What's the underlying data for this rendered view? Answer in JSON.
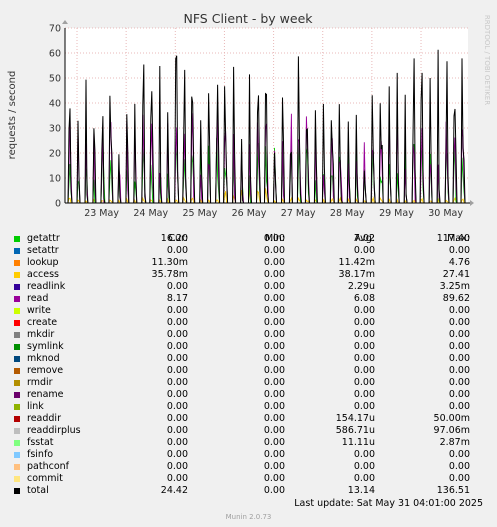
{
  "title": "NFS Client - by week",
  "vertical_label": "requests / second",
  "side_text": "RRDTOOL / TOBI OETIKER",
  "footer_text": "Munin 2.0.73",
  "last_update": "Last update: Sat May 31 04:01:00 2025",
  "legend_headers": {
    "cur": "Cur:",
    "min": "Min:",
    "avg": "Avg:",
    "max": "Max:"
  },
  "legend": [
    {
      "name": "getattr",
      "color": "#00cc00",
      "cur": "16.20",
      "min": "0.00",
      "avg": "7.02",
      "max": "117.40"
    },
    {
      "name": "setattr",
      "color": "#0066b3",
      "cur": "0.00",
      "min": "0.00",
      "avg": "0.00",
      "max": "0.00"
    },
    {
      "name": "lookup",
      "color": "#ff8000",
      "cur": "11.30m",
      "min": "0.00",
      "avg": "11.42m",
      "max": "4.76"
    },
    {
      "name": "access",
      "color": "#ffcc00",
      "cur": "35.78m",
      "min": "0.00",
      "avg": "38.17m",
      "max": "27.41"
    },
    {
      "name": "readlink",
      "color": "#330099",
      "cur": "0.00",
      "min": "0.00",
      "avg": "2.29u",
      "max": "3.25m"
    },
    {
      "name": "read",
      "color": "#990099",
      "cur": "8.17",
      "min": "0.00",
      "avg": "6.08",
      "max": "89.62"
    },
    {
      "name": "write",
      "color": "#ccff00",
      "cur": "0.00",
      "min": "0.00",
      "avg": "0.00",
      "max": "0.00"
    },
    {
      "name": "create",
      "color": "#ff0000",
      "cur": "0.00",
      "min": "0.00",
      "avg": "0.00",
      "max": "0.00"
    },
    {
      "name": "mkdir",
      "color": "#808080",
      "cur": "0.00",
      "min": "0.00",
      "avg": "0.00",
      "max": "0.00"
    },
    {
      "name": "symlink",
      "color": "#008f00",
      "cur": "0.00",
      "min": "0.00",
      "avg": "0.00",
      "max": "0.00"
    },
    {
      "name": "mknod",
      "color": "#00487d",
      "cur": "0.00",
      "min": "0.00",
      "avg": "0.00",
      "max": "0.00"
    },
    {
      "name": "remove",
      "color": "#b35a00",
      "cur": "0.00",
      "min": "0.00",
      "avg": "0.00",
      "max": "0.00"
    },
    {
      "name": "rmdir",
      "color": "#b38f00",
      "cur": "0.00",
      "min": "0.00",
      "avg": "0.00",
      "max": "0.00"
    },
    {
      "name": "rename",
      "color": "#6b006b",
      "cur": "0.00",
      "min": "0.00",
      "avg": "0.00",
      "max": "0.00"
    },
    {
      "name": "link",
      "color": "#8fb300",
      "cur": "0.00",
      "min": "0.00",
      "avg": "0.00",
      "max": "0.00"
    },
    {
      "name": "readdir",
      "color": "#b30000",
      "cur": "0.00",
      "min": "0.00",
      "avg": "154.17u",
      "max": "50.00m"
    },
    {
      "name": "readdirplus",
      "color": "#bebebe",
      "cur": "0.00",
      "min": "0.00",
      "avg": "586.71u",
      "max": "97.06m"
    },
    {
      "name": "fsstat",
      "color": "#80ff80",
      "cur": "0.00",
      "min": "0.00",
      "avg": "11.11u",
      "max": "2.87m"
    },
    {
      "name": "fsinfo",
      "color": "#80c9ff",
      "cur": "0.00",
      "min": "0.00",
      "avg": "0.00",
      "max": "0.00"
    },
    {
      "name": "pathconf",
      "color": "#ffc080",
      "cur": "0.00",
      "min": "0.00",
      "avg": "0.00",
      "max": "0.00"
    },
    {
      "name": "commit",
      "color": "#ffe680",
      "cur": "0.00",
      "min": "0.00",
      "avg": "0.00",
      "max": "0.00"
    },
    {
      "name": "total",
      "color": "#000000",
      "cur": "24.42",
      "min": "0.00",
      "avg": "13.14",
      "max": "136.51"
    }
  ],
  "chart_data": {
    "type": "line",
    "title": "NFS Client - by week",
    "ylabel": "requests / second",
    "ylim": [
      0,
      70
    ],
    "yticks": [
      0,
      10,
      20,
      30,
      40,
      50,
      60,
      70
    ],
    "categories": [
      "23 May",
      "24 May",
      "25 May",
      "26 May",
      "27 May",
      "28 May",
      "29 May",
      "30 May"
    ],
    "grid": true,
    "series": [
      {
        "name": "total",
        "color": "#000000",
        "values": [
          62,
          59,
          63,
          57,
          64,
          43,
          65,
          62
        ]
      },
      {
        "name": "read",
        "color": "#990099",
        "values": [
          36,
          36,
          37,
          35,
          36,
          30,
          37,
          36
        ]
      },
      {
        "name": "getattr",
        "color": "#00cc00",
        "values": [
          26,
          26,
          27,
          25,
          26,
          22,
          27,
          26
        ]
      },
      {
        "name": "access",
        "color": "#ffcc00",
        "values": [
          2,
          2,
          2,
          6,
          2,
          2,
          2,
          2
        ]
      }
    ]
  }
}
